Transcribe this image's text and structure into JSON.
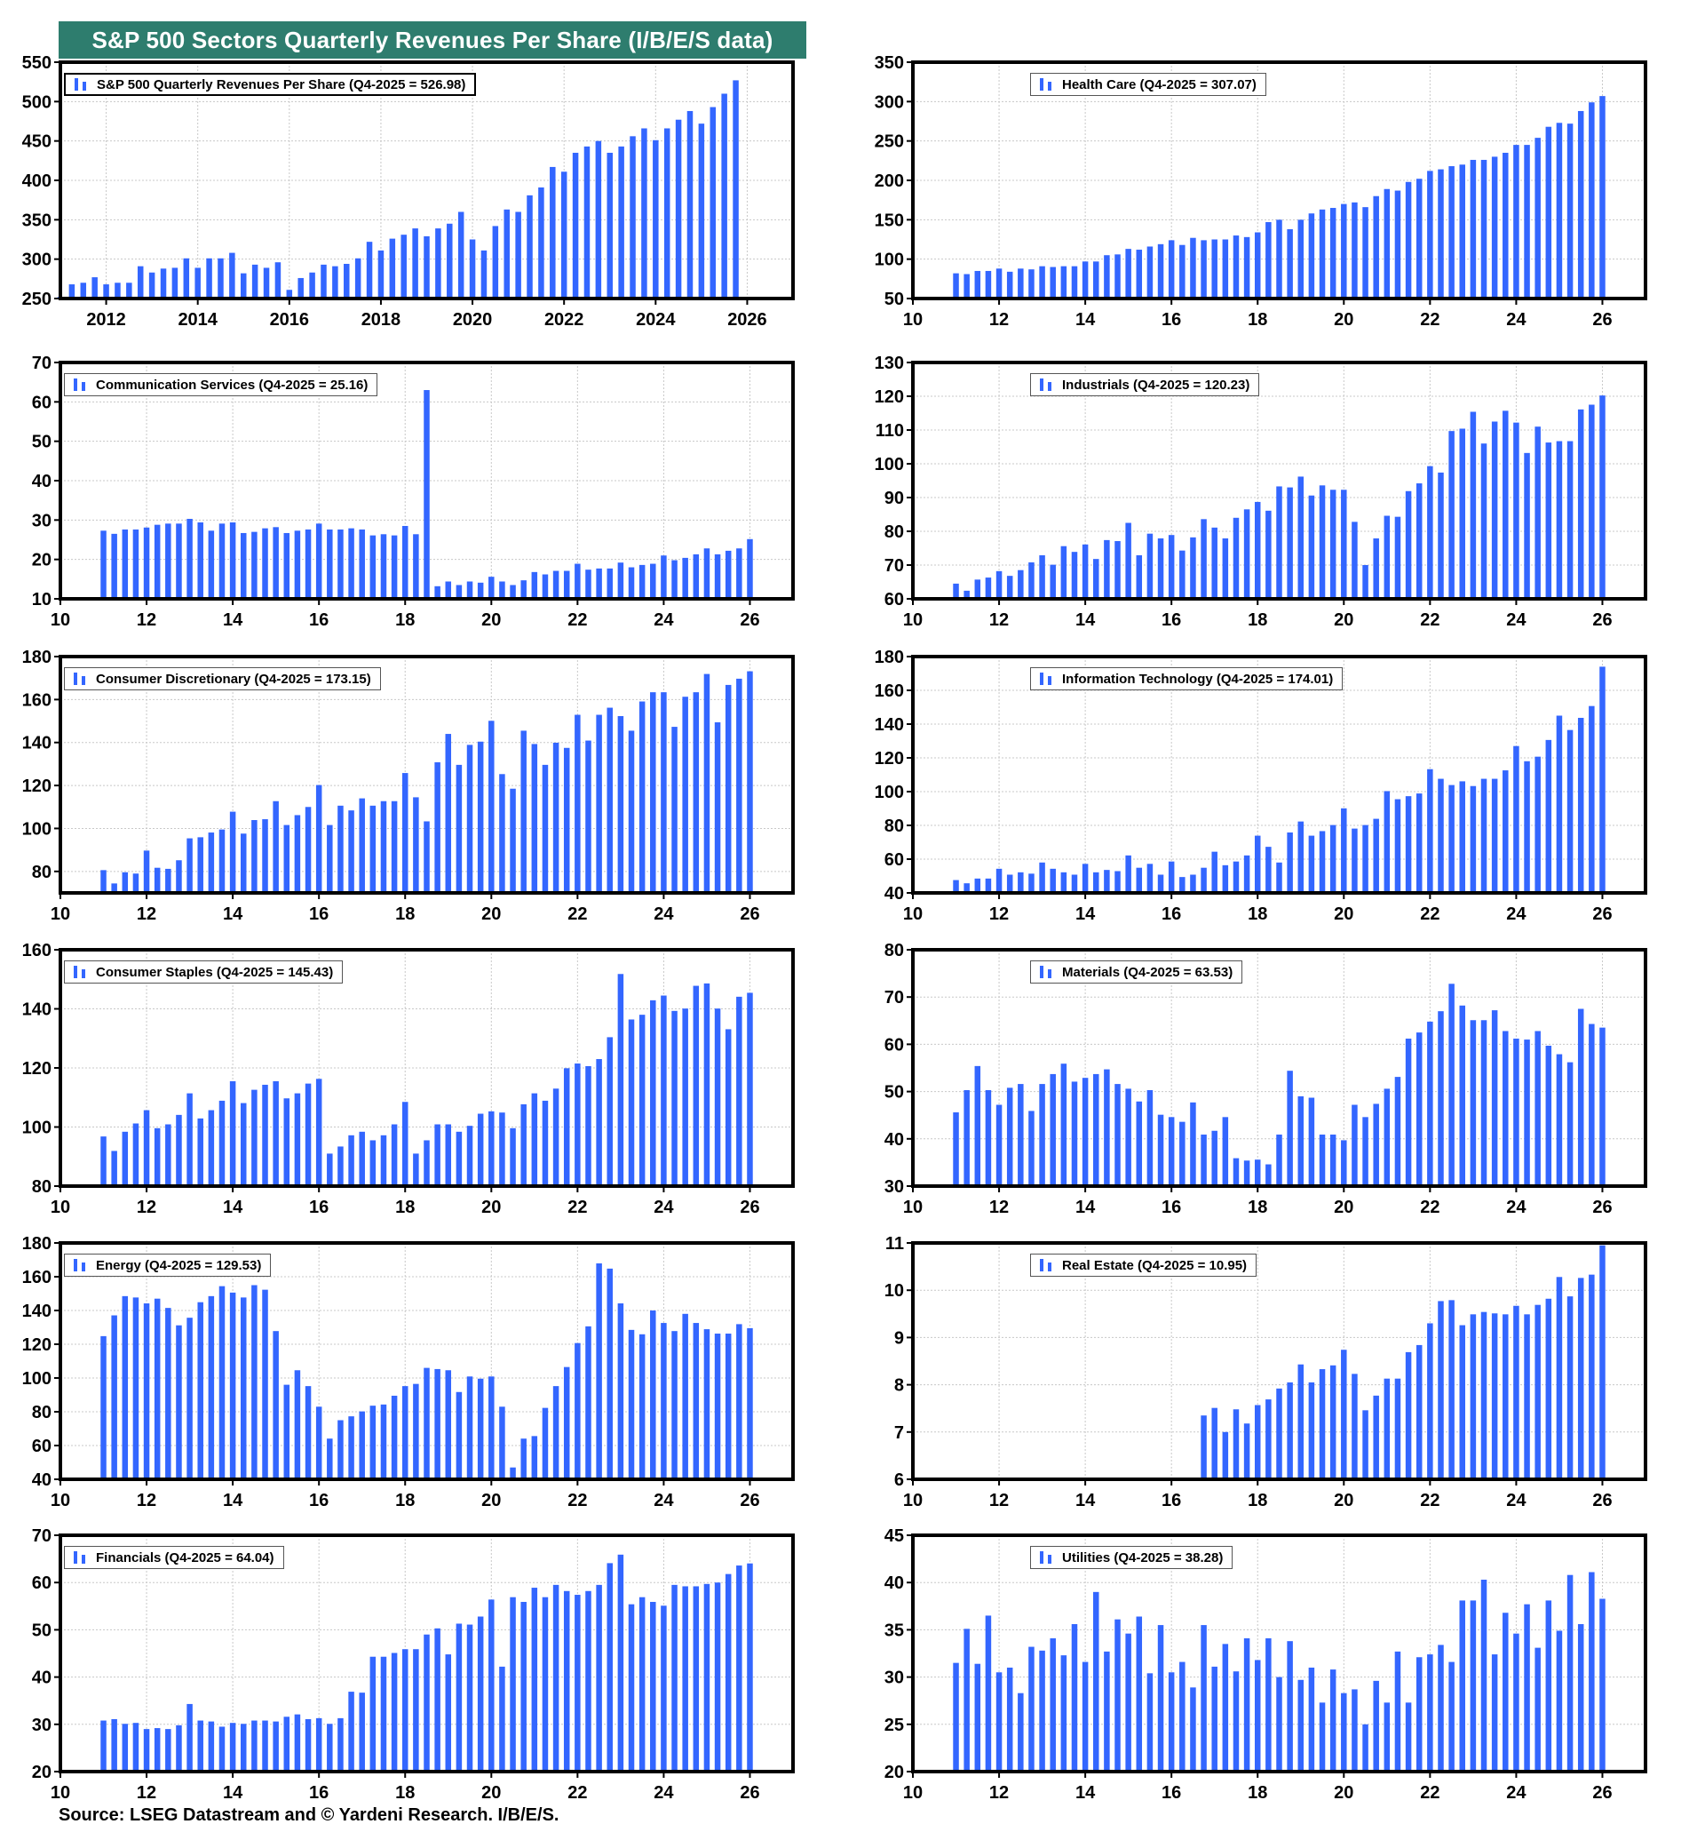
{
  "page": {
    "title": "S&P 500 Sectors Quarterly Revenues Per Share (I/B/E/S data)",
    "source": "Source: LSEG Datastream and © Yardeni Research. I/B/E/S.",
    "colors": {
      "bar": "#3366ff",
      "title_bg": "#2e7d6e",
      "grid": "#c8c8c8",
      "frame": "#000000"
    }
  },
  "chart_data": [
    {
      "id": "sp500",
      "type": "bar",
      "title": "S&P 500 Quarterly Revenues Per Share",
      "legend": "S&P 500 Quarterly Revenues Per Share  (Q4-2025 = 526.98)",
      "xlabel": "",
      "ylabel": "",
      "xlim": [
        2011,
        2027
      ],
      "x_start": 2011.0,
      "xticks": [
        2012,
        2014,
        2016,
        2018,
        2020,
        2022,
        2024,
        2026
      ],
      "xtick_labels": [
        "2012",
        "2014",
        "2016",
        "2018",
        "2020",
        "2022",
        "2024",
        "2026"
      ],
      "ylim": [
        250,
        550
      ],
      "yticks": [
        250,
        300,
        350,
        400,
        450,
        500,
        550
      ],
      "grid": true,
      "values": [
        252,
        268,
        270,
        277,
        268,
        270,
        270,
        291,
        283,
        288,
        289,
        301,
        289,
        301,
        301,
        308,
        282,
        293,
        289,
        296,
        261,
        276,
        283,
        293,
        291,
        294,
        301,
        322,
        311,
        326,
        331,
        339,
        329,
        339,
        345,
        360,
        325,
        311,
        342,
        363,
        360,
        381,
        391,
        417,
        411,
        435,
        443,
        450,
        435,
        443,
        456,
        466,
        451,
        466,
        477,
        488,
        472,
        493,
        510,
        527
      ]
    },
    {
      "id": "health-care",
      "type": "bar",
      "title": "Health Care",
      "legend": "Health Care (Q4-2025 = 307.07)",
      "xlim": [
        10,
        27
      ],
      "x_start": 11.0,
      "xticks": [
        10,
        12,
        14,
        16,
        18,
        20,
        22,
        24,
        26
      ],
      "xtick_labels": [
        "10",
        "12",
        "14",
        "16",
        "18",
        "20",
        "22",
        "24",
        "26"
      ],
      "ylim": [
        50,
        350
      ],
      "yticks": [
        50,
        100,
        150,
        200,
        250,
        300,
        350
      ],
      "grid": true,
      "values": [
        82,
        81,
        85,
        85,
        88,
        84,
        88,
        87,
        91,
        90,
        91,
        91,
        97,
        97,
        105,
        106,
        113,
        112,
        116,
        119,
        124,
        118,
        127,
        124,
        125,
        125,
        130,
        128,
        134,
        147,
        150,
        138,
        150,
        158,
        163,
        165,
        170,
        172,
        166,
        180,
        189,
        187,
        198,
        202,
        212,
        214,
        218,
        220,
        226,
        226,
        230,
        235,
        245,
        245,
        254,
        268,
        273,
        272,
        288,
        299,
        307
      ]
    },
    {
      "id": "communication-services",
      "type": "bar",
      "title": "Communication Services",
      "legend": "Communication Services (Q4-2025 = 25.16)",
      "xlim": [
        10,
        27
      ],
      "x_start": 11.0,
      "xticks": [
        10,
        12,
        14,
        16,
        18,
        20,
        22,
        24,
        26
      ],
      "xtick_labels": [
        "10",
        "12",
        "14",
        "16",
        "18",
        "20",
        "22",
        "24",
        "26"
      ],
      "ylim": [
        10,
        70
      ],
      "yticks": [
        10,
        20,
        30,
        40,
        50,
        60,
        70
      ],
      "grid": true,
      "values": [
        27.3,
        26.5,
        27.6,
        27.6,
        28.1,
        28.8,
        29.1,
        29.1,
        30.3,
        29.4,
        27.3,
        29.1,
        29.4,
        26.7,
        27.0,
        27.9,
        28.2,
        26.7,
        27.3,
        27.6,
        29.1,
        27.6,
        27.6,
        27.9,
        27.6,
        26.1,
        26.4,
        26.1,
        28.5,
        26.4,
        63.0,
        13.2,
        14.4,
        13.5,
        14.4,
        14.1,
        15.6,
        14.4,
        13.5,
        14.7,
        16.8,
        16.2,
        17.1,
        17.1,
        18.9,
        17.4,
        17.7,
        17.7,
        19.2,
        18.0,
        18.6,
        18.9,
        21.0,
        19.8,
        20.4,
        21.3,
        22.8,
        21.3,
        22.2,
        22.8,
        25.16
      ]
    },
    {
      "id": "industrials",
      "type": "bar",
      "title": "Industrials",
      "legend": "Industrials (Q4-2025 = 120.23)",
      "xlim": [
        10,
        27
      ],
      "x_start": 11.0,
      "xticks": [
        10,
        12,
        14,
        16,
        18,
        20,
        22,
        24,
        26
      ],
      "xtick_labels": [
        "10",
        "12",
        "14",
        "16",
        "18",
        "20",
        "22",
        "24",
        "26"
      ],
      "ylim": [
        60,
        130
      ],
      "yticks": [
        60,
        70,
        80,
        90,
        100,
        110,
        120,
        130
      ],
      "grid": true,
      "values": [
        64.5,
        62.4,
        65.7,
        66.3,
        68.2,
        66.8,
        68.5,
        70.8,
        72.9,
        70.1,
        75.6,
        73.9,
        76.1,
        71.8,
        77.4,
        77.1,
        82.5,
        72.9,
        79.3,
        77.9,
        78.9,
        74.3,
        78.2,
        83.6,
        81.1,
        77.9,
        84.0,
        86.5,
        88.7,
        86.1,
        93.3,
        93.0,
        96.2,
        90.6,
        93.6,
        92.3,
        92.3,
        82.8,
        70.0,
        77.9,
        84.6,
        84.3,
        91.9,
        94.2,
        99.3,
        97.4,
        109.7,
        110.4,
        115.4,
        106.0,
        112.5,
        115.7,
        112.2,
        103.2,
        111.0,
        106.3,
        106.7,
        106.7,
        116.1,
        117.5,
        120.23
      ]
    },
    {
      "id": "consumer-discretionary",
      "type": "bar",
      "title": "Consumer Discretionary",
      "legend": "Consumer Discretionary (Q4-2025 = 173.15)",
      "xlim": [
        10,
        27
      ],
      "x_start": 11.0,
      "xticks": [
        10,
        12,
        14,
        16,
        18,
        20,
        22,
        24,
        26
      ],
      "xtick_labels": [
        "10",
        "12",
        "14",
        "16",
        "18",
        "20",
        "22",
        "24",
        "26"
      ],
      "ylim": [
        70,
        180
      ],
      "yticks": [
        80,
        100,
        120,
        140,
        160,
        180
      ],
      "grid": true,
      "values": [
        80.6,
        74.4,
        79.6,
        79.0,
        89.7,
        81.7,
        81.2,
        85.2,
        95.4,
        95.9,
        98.1,
        99.5,
        107.8,
        97.6,
        103.9,
        104.3,
        112.7,
        101.6,
        106.2,
        110.0,
        120.2,
        101.6,
        110.6,
        108.4,
        114.0,
        110.6,
        112.7,
        112.7,
        125.8,
        114.5,
        103.3,
        130.8,
        144.0,
        129.6,
        138.9,
        140.4,
        150.1,
        125.3,
        118.5,
        145.5,
        139.3,
        129.6,
        139.9,
        137.5,
        152.9,
        140.9,
        152.9,
        156.2,
        152.3,
        145.5,
        159.1,
        163.4,
        163.4,
        147.3,
        161.3,
        163.4,
        171.9,
        149.4,
        166.8,
        169.7,
        173.15
      ]
    },
    {
      "id": "information-technology",
      "type": "bar",
      "title": "Information Technology",
      "legend": "Information Technology (Q4-2025 = 174.01)",
      "xlim": [
        10,
        27
      ],
      "x_start": 11.0,
      "xticks": [
        10,
        12,
        14,
        16,
        18,
        20,
        22,
        24,
        26
      ],
      "xtick_labels": [
        "10",
        "12",
        "14",
        "16",
        "18",
        "20",
        "22",
        "24",
        "26"
      ],
      "ylim": [
        40,
        180
      ],
      "yticks": [
        40,
        60,
        80,
        100,
        120,
        140,
        160,
        180
      ],
      "grid": true,
      "values": [
        47.6,
        45.7,
        48.5,
        48.5,
        54.3,
        50.8,
        52.2,
        51.4,
        58.0,
        54.3,
        52.2,
        50.8,
        57.2,
        52.2,
        53.6,
        52.9,
        62.2,
        54.9,
        57.2,
        50.8,
        58.6,
        49.4,
        50.8,
        54.9,
        64.4,
        56.4,
        58.6,
        62.2,
        73.9,
        67.3,
        58.0,
        75.8,
        82.3,
        73.9,
        76.6,
        80.2,
        90.1,
        78.1,
        80.2,
        83.9,
        100.3,
        95.5,
        97.3,
        98.9,
        113.3,
        107.6,
        103.9,
        106.1,
        103.3,
        107.6,
        107.6,
        112.6,
        127.0,
        118.0,
        120.7,
        130.6,
        145.0,
        136.5,
        143.7,
        150.7,
        174.01
      ]
    },
    {
      "id": "consumer-staples",
      "type": "bar",
      "title": "Consumer Staples",
      "legend": "Consumer Staples (Q4-2025 = 145.43)",
      "xlim": [
        10,
        27
      ],
      "x_start": 11.0,
      "xticks": [
        10,
        12,
        14,
        16,
        18,
        20,
        22,
        24,
        26
      ],
      "xtick_labels": [
        "10",
        "12",
        "14",
        "16",
        "18",
        "20",
        "22",
        "24",
        "26"
      ],
      "ylim": [
        80,
        160
      ],
      "yticks": [
        80,
        100,
        120,
        140,
        160
      ],
      "grid": true,
      "values": [
        96.8,
        91.9,
        98.4,
        101.2,
        105.7,
        99.6,
        100.9,
        104.1,
        111.4,
        102.9,
        105.7,
        108.9,
        115.5,
        108.1,
        112.6,
        114.3,
        115.5,
        109.7,
        111.4,
        114.7,
        116.3,
        91.0,
        93.4,
        97.2,
        98.4,
        95.5,
        97.2,
        100.9,
        108.5,
        91.0,
        95.5,
        100.9,
        100.9,
        98.4,
        100.4,
        104.5,
        105.3,
        104.9,
        99.6,
        107.7,
        111.4,
        108.9,
        113.0,
        119.9,
        121.5,
        120.6,
        123.0,
        130.4,
        151.8,
        136.4,
        138.0,
        142.9,
        144.5,
        139.3,
        140.1,
        147.8,
        148.6,
        140.1,
        133.1,
        144.1,
        145.43
      ]
    },
    {
      "id": "materials",
      "type": "bar",
      "title": "Materials",
      "legend": "Materials (Q4-2025 = 63.53)",
      "xlim": [
        10,
        27
      ],
      "x_start": 11.0,
      "xticks": [
        10,
        12,
        14,
        16,
        18,
        20,
        22,
        24,
        26
      ],
      "xtick_labels": [
        "10",
        "12",
        "14",
        "16",
        "18",
        "20",
        "22",
        "24",
        "26"
      ],
      "ylim": [
        30,
        80
      ],
      "yticks": [
        30,
        40,
        50,
        60,
        70,
        80
      ],
      "grid": true,
      "values": [
        45.6,
        50.3,
        55.4,
        50.3,
        47.2,
        50.8,
        51.6,
        45.9,
        51.6,
        53.7,
        55.9,
        52.1,
        52.9,
        53.7,
        54.7,
        51.6,
        50.6,
        47.9,
        50.3,
        45.1,
        44.6,
        43.6,
        47.7,
        40.9,
        41.7,
        44.6,
        35.9,
        35.4,
        35.6,
        34.6,
        40.9,
        54.4,
        49.0,
        48.7,
        40.9,
        40.9,
        39.7,
        47.2,
        44.6,
        47.4,
        50.6,
        53.1,
        61.2,
        62.5,
        64.8,
        67.0,
        72.8,
        68.2,
        65.1,
        65.1,
        67.2,
        62.8,
        61.2,
        61.0,
        62.8,
        59.7,
        57.9,
        56.2,
        67.5,
        64.3,
        63.53
      ]
    },
    {
      "id": "energy",
      "type": "bar",
      "title": "Energy",
      "legend": "Energy (Q4-2025 = 129.53)",
      "xlim": [
        10,
        27
      ],
      "x_start": 11.0,
      "xticks": [
        10,
        12,
        14,
        16,
        18,
        20,
        22,
        24,
        26
      ],
      "xtick_labels": [
        "10",
        "12",
        "14",
        "16",
        "18",
        "20",
        "22",
        "24",
        "26"
      ],
      "ylim": [
        40,
        180
      ],
      "yticks": [
        40,
        60,
        80,
        100,
        120,
        140,
        160,
        180
      ],
      "grid": true,
      "values": [
        124.8,
        137.1,
        148.5,
        147.7,
        144.2,
        147.0,
        141.5,
        131.2,
        135.7,
        144.9,
        148.5,
        154.4,
        150.6,
        147.7,
        155.0,
        152.3,
        127.8,
        96.0,
        104.6,
        95.2,
        83.0,
        64.1,
        75.0,
        77.3,
        80.2,
        83.6,
        84.3,
        89.5,
        95.2,
        96.5,
        106.0,
        105.3,
        104.6,
        91.7,
        100.9,
        99.6,
        100.9,
        83.0,
        47.0,
        64.1,
        65.6,
        82.3,
        95.2,
        106.5,
        120.7,
        130.6,
        167.9,
        164.8,
        144.2,
        128.5,
        125.9,
        140.0,
        132.6,
        127.8,
        138.0,
        132.6,
        128.9,
        126.3,
        126.3,
        131.9,
        129.53
      ]
    },
    {
      "id": "real-estate",
      "type": "bar",
      "title": "Real Estate",
      "legend": "Real Estate (Q4-2025 = 10.95)",
      "xlim": [
        10,
        27
      ],
      "x_start": 16.75,
      "xticks": [
        10,
        12,
        14,
        16,
        18,
        20,
        22,
        24,
        26
      ],
      "xtick_labels": [
        "10",
        "12",
        "14",
        "16",
        "18",
        "20",
        "22",
        "24",
        "26"
      ],
      "ylim": [
        6,
        11
      ],
      "yticks": [
        6,
        7,
        8,
        9,
        10,
        11
      ],
      "grid": true,
      "values": [
        7.35,
        7.51,
        7.0,
        7.48,
        7.18,
        7.57,
        7.69,
        7.92,
        8.05,
        8.43,
        8.05,
        8.33,
        8.41,
        8.74,
        8.23,
        7.46,
        7.77,
        8.13,
        8.13,
        8.69,
        8.84,
        9.3,
        9.77,
        9.79,
        9.26,
        9.49,
        9.54,
        9.51,
        9.49,
        9.67,
        9.49,
        9.69,
        9.82,
        10.28,
        9.87,
        10.26,
        10.33,
        10.95
      ]
    },
    {
      "id": "financials",
      "type": "bar",
      "title": "Financials",
      "legend": "Financials (Q4-2025 = 64.04)",
      "xlim": [
        10,
        27
      ],
      "x_start": 11.0,
      "xticks": [
        10,
        12,
        14,
        16,
        18,
        20,
        22,
        24,
        26
      ],
      "xtick_labels": [
        "10",
        "12",
        "14",
        "16",
        "18",
        "20",
        "22",
        "24",
        "26"
      ],
      "ylim": [
        20,
        70
      ],
      "yticks": [
        20,
        30,
        40,
        50,
        60,
        70
      ],
      "grid": true,
      "values": [
        30.8,
        31.1,
        30.1,
        30.3,
        29.0,
        29.2,
        29.0,
        29.8,
        34.3,
        30.8,
        30.6,
        29.5,
        30.3,
        30.1,
        30.8,
        30.8,
        30.6,
        31.6,
        32.1,
        31.1,
        31.3,
        30.1,
        31.3,
        36.9,
        36.7,
        44.3,
        44.3,
        45.1,
        45.9,
        45.9,
        49.0,
        50.3,
        44.8,
        51.3,
        51.1,
        52.8,
        56.4,
        42.2,
        56.9,
        55.9,
        58.9,
        56.9,
        59.5,
        58.2,
        57.4,
        58.2,
        59.5,
        64.1,
        65.9,
        55.4,
        56.9,
        55.9,
        55.1,
        59.5,
        59.2,
        59.2,
        59.7,
        60.0,
        61.8,
        63.6,
        64.04
      ]
    },
    {
      "id": "utilities",
      "type": "bar",
      "title": "Utilities",
      "legend": "Utilities (Q4-2025 = 38.28)",
      "xlim": [
        10,
        27
      ],
      "x_start": 11.0,
      "xticks": [
        10,
        12,
        14,
        16,
        18,
        20,
        22,
        24,
        26
      ],
      "xtick_labels": [
        "10",
        "12",
        "14",
        "16",
        "18",
        "20",
        "22",
        "24",
        "26"
      ],
      "ylim": [
        20,
        45
      ],
      "yticks": [
        20,
        25,
        30,
        35,
        40,
        45
      ],
      "grid": true,
      "values": [
        31.5,
        35.1,
        31.4,
        36.5,
        30.5,
        31.0,
        28.3,
        33.2,
        32.8,
        34.1,
        32.3,
        35.6,
        31.6,
        39.0,
        32.7,
        36.1,
        34.6,
        36.4,
        30.4,
        35.5,
        30.5,
        31.6,
        28.9,
        35.5,
        31.1,
        33.5,
        30.6,
        34.1,
        31.8,
        34.1,
        30.0,
        33.8,
        29.7,
        31.0,
        27.3,
        30.8,
        28.3,
        28.7,
        25.0,
        29.6,
        27.3,
        32.7,
        27.3,
        32.1,
        32.4,
        33.4,
        31.6,
        38.1,
        38.1,
        40.3,
        32.4,
        36.8,
        34.6,
        37.7,
        33.1,
        38.1,
        34.9,
        40.8,
        35.6,
        41.1,
        38.28
      ]
    }
  ]
}
